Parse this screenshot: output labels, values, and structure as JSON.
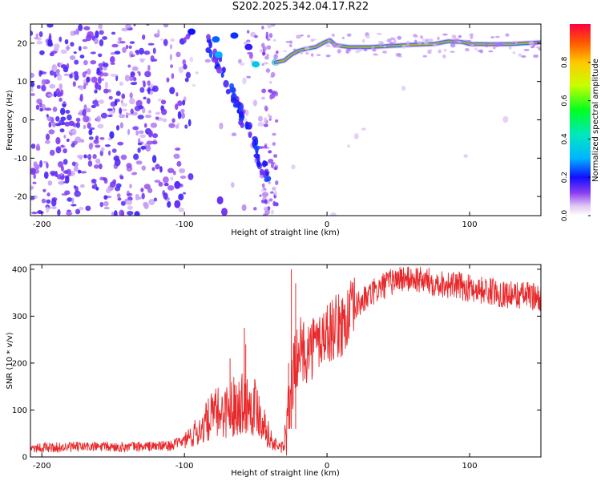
{
  "title": "S202.2025.342.04.17.R22",
  "colors": {
    "signal": "#e8282a",
    "frame": "#000000"
  },
  "chart_data": [
    {
      "type": "heatmap",
      "name": "spectrogram",
      "xlabel": "Height of straight line (km)",
      "ylabel": "Frequency (Hz)",
      "xlim": [
        -208,
        150
      ],
      "ylim": [
        -25,
        25
      ],
      "xticks": [
        -200,
        -100,
        0,
        100
      ],
      "yticks": [
        -20,
        -10,
        0,
        10,
        20
      ],
      "xtick_labels": [
        "-200",
        "-100",
        "0",
        "100"
      ],
      "ytick_labels": [
        "-20",
        "-10",
        "0",
        "10",
        "20"
      ],
      "colorbar": {
        "label": "Normalized spectral amplitude",
        "range": [
          0,
          1
        ],
        "ticks": [
          0.0,
          0.2,
          0.4,
          0.6,
          0.8
        ],
        "tick_labels": [
          "0.0",
          "0.2",
          "0.4",
          "0.6",
          "0.8"
        ]
      },
      "carrier_track": [
        {
          "x": -36,
          "y": 15
        },
        {
          "x": -30,
          "y": 15.5
        },
        {
          "x": -25,
          "y": 17
        },
        {
          "x": -20,
          "y": 18
        },
        {
          "x": -15,
          "y": 18.5
        },
        {
          "x": -8,
          "y": 19
        },
        {
          "x": -2,
          "y": 20.2
        },
        {
          "x": 2,
          "y": 20.8
        },
        {
          "x": 6,
          "y": 19.5
        },
        {
          "x": 15,
          "y": 19
        },
        {
          "x": 30,
          "y": 19
        },
        {
          "x": 45,
          "y": 19.3
        },
        {
          "x": 60,
          "y": 19.6
        },
        {
          "x": 75,
          "y": 19.8
        },
        {
          "x": 85,
          "y": 20.5
        },
        {
          "x": 95,
          "y": 20.3
        },
        {
          "x": 100,
          "y": 19.8
        },
        {
          "x": 115,
          "y": 19.7
        },
        {
          "x": 130,
          "y": 19.8
        },
        {
          "x": 150,
          "y": 20.2
        }
      ]
    },
    {
      "type": "line",
      "name": "snr",
      "xlabel": "Height of straight line (km)",
      "ylabel": "SNR (10 * v/v)",
      "xlim": [
        -208,
        150
      ],
      "ylim": [
        0,
        410
      ],
      "xticks": [
        -200,
        -100,
        0,
        100
      ],
      "yticks": [
        0,
        100,
        200,
        300,
        400
      ],
      "xtick_labels": [
        "-200",
        "-100",
        "0",
        "100"
      ],
      "ytick_labels": [
        "0",
        "100",
        "200",
        "300",
        "400"
      ],
      "series": [
        {
          "name": "SNR",
          "x": [
            -208,
            -190,
            -170,
            -150,
            -130,
            -110,
            -100,
            -90,
            -80,
            -70,
            -60,
            -50,
            -45,
            -40,
            -35,
            -30,
            -28,
            -25,
            -22,
            -20,
            -15,
            -10,
            -5,
            0,
            5,
            10,
            15,
            20,
            30,
            40,
            50,
            60,
            70,
            80,
            90,
            100,
            110,
            120,
            130,
            140,
            150
          ],
          "y": [
            20,
            20,
            22,
            21,
            22,
            24,
            35,
            55,
            90,
            100,
            120,
            110,
            80,
            40,
            22,
            22,
            60,
            150,
            200,
            230,
            225,
            235,
            250,
            265,
            275,
            280,
            300,
            320,
            345,
            365,
            380,
            380,
            375,
            370,
            365,
            360,
            355,
            350,
            345,
            345,
            340
          ]
        }
      ]
    }
  ]
}
